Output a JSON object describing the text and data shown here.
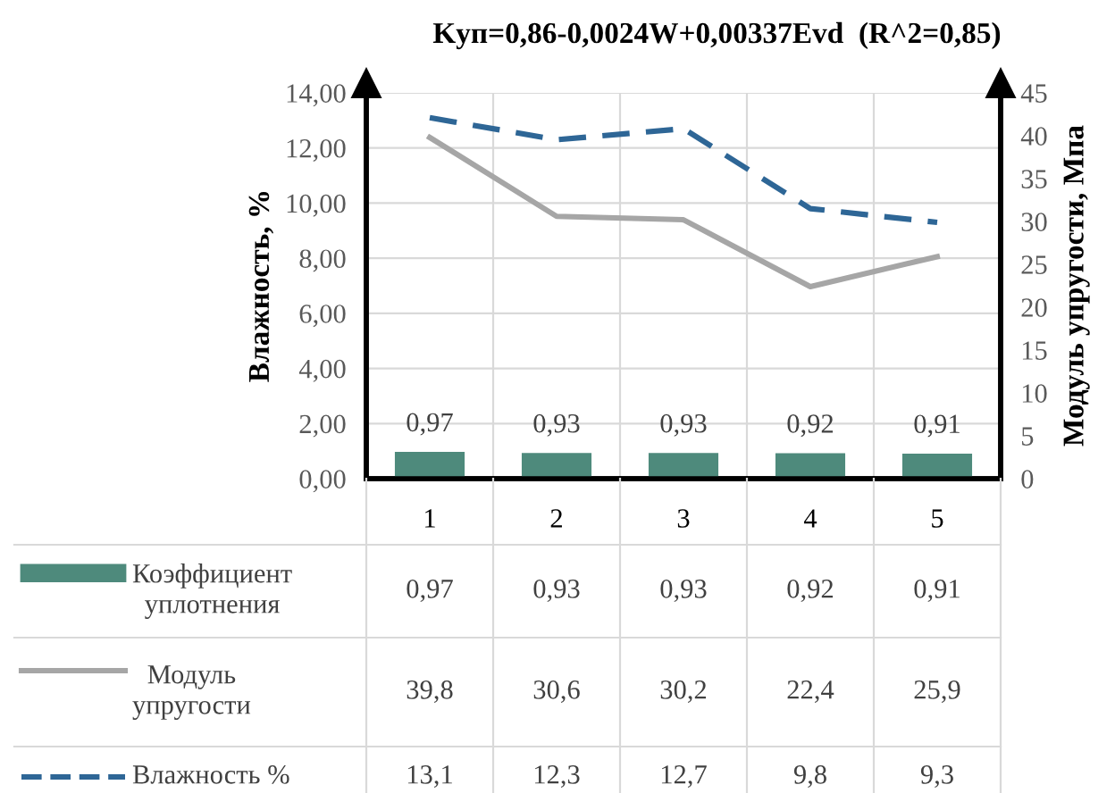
{
  "chart_data": {
    "type": "bar",
    "title": "Kуп=0,86-0,0024W+0,00337Evd  (R^2=0,85)",
    "ylabel": "Влажность, %",
    "y2label": "Модуль упругости, Мпа",
    "categories": [
      "1",
      "2",
      "3",
      "4",
      "5"
    ],
    "series": [
      {
        "name": "Коэффициент уплотнения",
        "color": "#4e8a7c",
        "values": [
          0.97,
          0.93,
          0.93,
          0.92,
          0.91
        ],
        "value_labels": [
          "0,97",
          "0,93",
          "0,93",
          "0,92",
          "0,91"
        ]
      },
      {
        "name": "Модуль упругости",
        "type": "line",
        "axis": "y2",
        "color": "#a6a6a6",
        "line_style": "solid",
        "values": [
          39.8,
          30.6,
          30.2,
          22.4,
          25.9
        ],
        "value_labels": [
          "39,8",
          "30,6",
          "30,2",
          "22,4",
          "25,9"
        ]
      },
      {
        "name": "Влажность %",
        "type": "line",
        "color": "#2e6696",
        "line_style": "dashed",
        "values": [
          13.1,
          12.3,
          12.7,
          9.8,
          9.3
        ],
        "value_labels": [
          "13,1",
          "12,3",
          "12,7",
          "9,8",
          "9,3"
        ]
      }
    ],
    "ylim": [
      0,
      14
    ],
    "yticks": [
      {
        "value": 0,
        "label": "0,00"
      },
      {
        "value": 2,
        "label": "2,00"
      },
      {
        "value": 4,
        "label": "4,00"
      },
      {
        "value": 6,
        "label": "6,00"
      },
      {
        "value": 8,
        "label": "8,00"
      },
      {
        "value": 10,
        "label": "10,00"
      },
      {
        "value": 12,
        "label": "12,00"
      },
      {
        "value": 14,
        "label": "14,00"
      }
    ],
    "y2lim": [
      0,
      45
    ],
    "y2ticks": [
      0,
      5,
      10,
      15,
      20,
      25,
      30,
      35,
      40,
      45
    ],
    "grid": true,
    "legend": "bottom",
    "marker": "none"
  }
}
